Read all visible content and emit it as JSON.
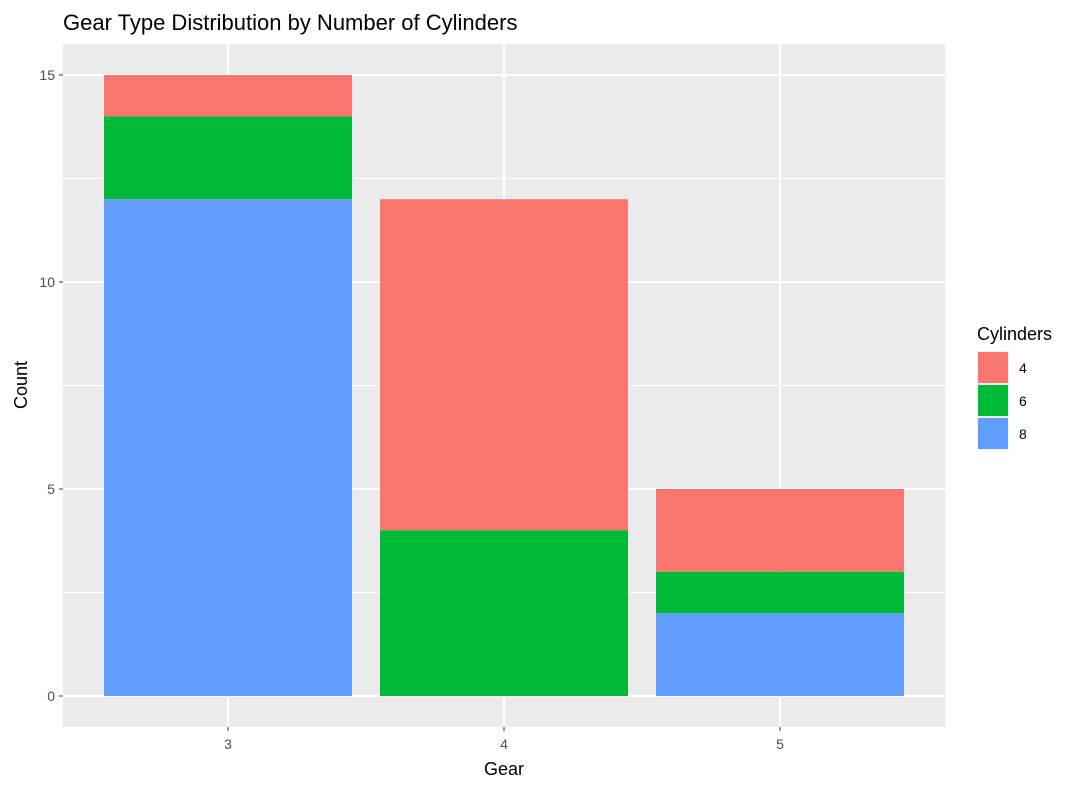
{
  "chart_data": {
    "type": "bar",
    "stacked": true,
    "title": "Gear Type Distribution by Number of Cylinders",
    "xlabel": "Gear",
    "ylabel": "Count",
    "categories": [
      "3",
      "4",
      "5"
    ],
    "ylim": [
      0,
      15
    ],
    "y_ticks": [
      "0",
      "5",
      "10",
      "15"
    ],
    "series": [
      {
        "name": "4",
        "color": "#F8766D",
        "values": [
          1,
          8,
          2
        ]
      },
      {
        "name": "6",
        "color": "#00BA38",
        "values": [
          2,
          4,
          1
        ]
      },
      {
        "name": "8",
        "color": "#619CFF",
        "values": [
          12,
          0,
          2
        ]
      }
    ],
    "stack_order_bottom_to_top": [
      "8",
      "6",
      "4"
    ],
    "legend": {
      "title": "Cylinders",
      "position": "right"
    },
    "grid": true,
    "panel_background": "#EBEBEB",
    "gridline_color": "#FFFFFF"
  }
}
